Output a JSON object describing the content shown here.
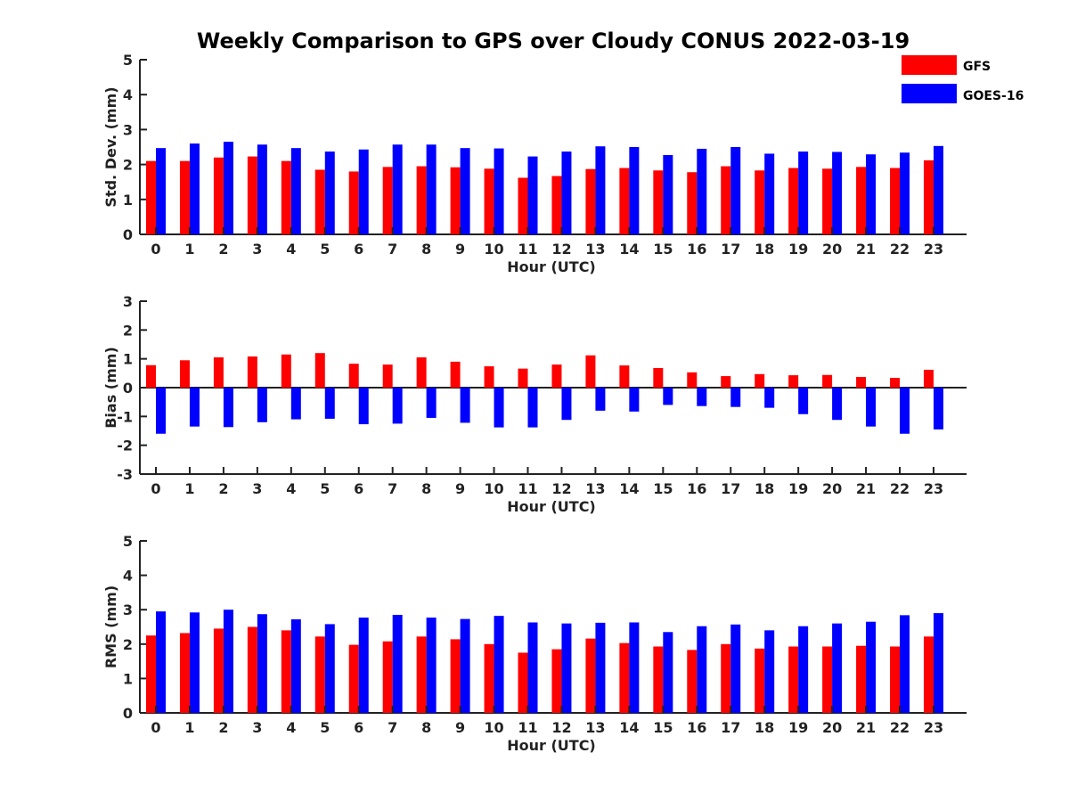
{
  "title": "Weekly Comparison to GPS over Cloudy CONUS 2022-03-19",
  "legend": [
    {
      "name": "GFS",
      "color": "#ff0000"
    },
    {
      "name": "GOES-16",
      "color": "#0000ff"
    }
  ],
  "chart_data": [
    {
      "type": "bar",
      "xlabel": "Hour (UTC)",
      "ylabel": "Std. Dev. (mm)",
      "ylim": [
        0,
        5
      ],
      "yticks": [
        0,
        1,
        2,
        3,
        4,
        5
      ],
      "categories": [
        "0",
        "1",
        "2",
        "3",
        "4",
        "5",
        "6",
        "7",
        "8",
        "9",
        "10",
        "11",
        "12",
        "13",
        "14",
        "15",
        "16",
        "17",
        "18",
        "19",
        "20",
        "21",
        "22",
        "23"
      ],
      "series": [
        {
          "name": "GFS",
          "color": "#ff0000",
          "values": [
            2.1,
            2.1,
            2.2,
            2.23,
            2.1,
            1.85,
            1.8,
            1.93,
            1.95,
            1.92,
            1.88,
            1.62,
            1.67,
            1.87,
            1.9,
            1.83,
            1.78,
            1.95,
            1.83,
            1.9,
            1.88,
            1.93,
            1.9,
            2.12
          ]
        },
        {
          "name": "GOES-16",
          "color": "#0000ff",
          "values": [
            2.47,
            2.6,
            2.65,
            2.57,
            2.47,
            2.37,
            2.43,
            2.57,
            2.57,
            2.47,
            2.46,
            2.23,
            2.37,
            2.52,
            2.5,
            2.27,
            2.45,
            2.5,
            2.31,
            2.37,
            2.36,
            2.29,
            2.34,
            2.53
          ]
        }
      ]
    },
    {
      "type": "bar",
      "xlabel": "Hour (UTC)",
      "ylabel": "Bias (mm)",
      "ylim": [
        -3,
        3
      ],
      "yticks": [
        -3,
        -2,
        -1,
        0,
        1,
        2,
        3
      ],
      "zero_line": true,
      "categories": [
        "0",
        "1",
        "2",
        "3",
        "4",
        "5",
        "6",
        "7",
        "8",
        "9",
        "10",
        "11",
        "12",
        "13",
        "14",
        "15",
        "16",
        "17",
        "18",
        "19",
        "20",
        "21",
        "22",
        "23"
      ],
      "series": [
        {
          "name": "GFS",
          "color": "#ff0000",
          "values": [
            0.78,
            0.95,
            1.05,
            1.08,
            1.15,
            1.2,
            0.83,
            0.8,
            1.05,
            0.9,
            0.74,
            0.66,
            0.8,
            1.12,
            0.77,
            0.68,
            0.53,
            0.4,
            0.47,
            0.43,
            0.44,
            0.37,
            0.34,
            0.62
          ]
        },
        {
          "name": "GOES-16",
          "color": "#0000ff",
          "values": [
            -1.6,
            -1.35,
            -1.37,
            -1.2,
            -1.1,
            -1.08,
            -1.27,
            -1.25,
            -1.05,
            -1.22,
            -1.38,
            -1.38,
            -1.12,
            -0.8,
            -0.83,
            -0.6,
            -0.64,
            -0.67,
            -0.7,
            -0.92,
            -1.12,
            -1.35,
            -1.6,
            -1.45
          ]
        }
      ]
    },
    {
      "type": "bar",
      "xlabel": "Hour (UTC)",
      "ylabel": "RMS (mm)",
      "ylim": [
        0,
        5
      ],
      "yticks": [
        0,
        1,
        2,
        3,
        4,
        5
      ],
      "categories": [
        "0",
        "1",
        "2",
        "3",
        "4",
        "5",
        "6",
        "7",
        "8",
        "9",
        "10",
        "11",
        "12",
        "13",
        "14",
        "15",
        "16",
        "17",
        "18",
        "19",
        "20",
        "21",
        "22",
        "23"
      ],
      "series": [
        {
          "name": "GFS",
          "color": "#ff0000",
          "values": [
            2.25,
            2.32,
            2.45,
            2.5,
            2.4,
            2.22,
            1.98,
            2.08,
            2.22,
            2.14,
            2.0,
            1.75,
            1.85,
            2.16,
            2.03,
            1.93,
            1.83,
            2.0,
            1.87,
            1.93,
            1.93,
            1.95,
            1.93,
            2.22
          ]
        },
        {
          "name": "GOES-16",
          "color": "#0000ff",
          "values": [
            2.95,
            2.92,
            3.0,
            2.87,
            2.72,
            2.58,
            2.77,
            2.85,
            2.77,
            2.73,
            2.82,
            2.63,
            2.6,
            2.62,
            2.63,
            2.35,
            2.52,
            2.57,
            2.4,
            2.52,
            2.6,
            2.65,
            2.84,
            2.9
          ]
        }
      ]
    }
  ]
}
